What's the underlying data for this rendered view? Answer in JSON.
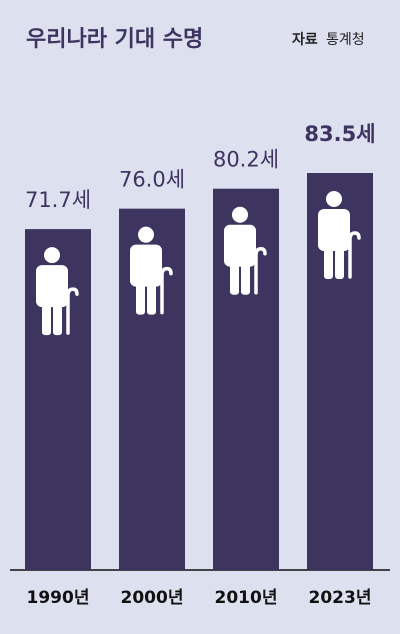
{
  "chart_data": {
    "type": "bar",
    "title": "우리나라 기대 수명",
    "source_label": "자료",
    "source": "통계청",
    "categories": [
      "1990년",
      "2000년",
      "2010년",
      "2023년"
    ],
    "values": [
      71.7,
      76.0,
      80.2,
      83.5
    ],
    "value_labels": [
      "71.7세",
      "76.0세",
      "80.2세",
      "83.5세"
    ],
    "color": "#3d3560",
    "highlight": 3
  }
}
